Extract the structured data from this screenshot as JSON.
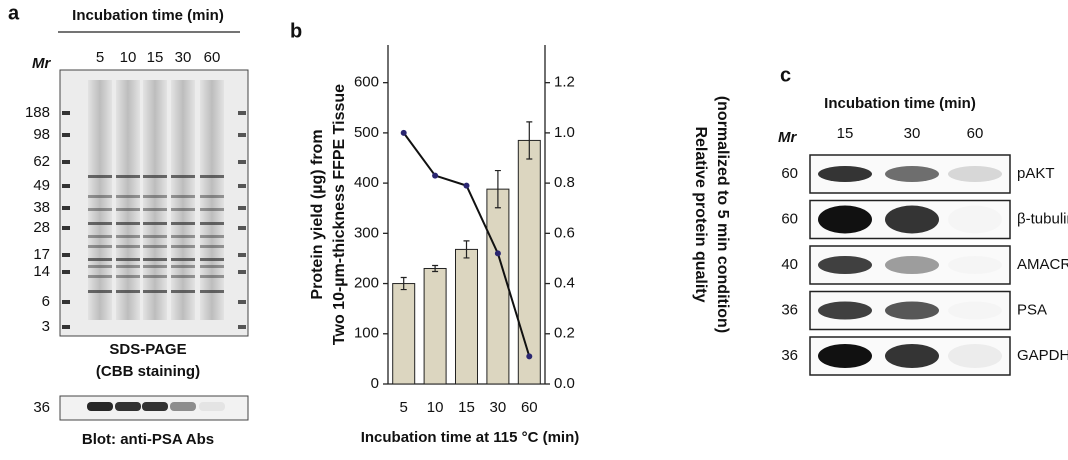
{
  "panel_a": {
    "letter": "a",
    "header": "Incubation time (min)",
    "lanes": [
      "5",
      "10",
      "15",
      "30",
      "60"
    ],
    "mr_label": "Mr",
    "markers": [
      188,
      98,
      62,
      49,
      38,
      28,
      17,
      14,
      6,
      3
    ],
    "caption": [
      "SDS-PAGE",
      "(CBB staining)"
    ],
    "blot_marker": 36,
    "blot_caption": "Blot: anti-PSA Abs"
  },
  "chart_data": {
    "letter": "b",
    "type": "bar-line",
    "xlabel": "Incubation time at 115 °C (min)",
    "ylabel": [
      "Protein yield (µg) from",
      "Two 10-µm-thickness FFPE Tissue"
    ],
    "y2label": [
      "Relative protein quality",
      "(normalized to 5 min condition)"
    ],
    "categories": [
      "5",
      "10",
      "15",
      "30",
      "60"
    ],
    "series": [
      {
        "type": "bar",
        "color": "#dcd6c0",
        "values": [
          200,
          230,
          268,
          388,
          485
        ],
        "errors": [
          12,
          6,
          17,
          37,
          37
        ]
      },
      {
        "type": "line",
        "axis": "y2",
        "color": "#111111",
        "marker_color": "#2a2670",
        "values": [
          1.0,
          0.83,
          0.79,
          0.52,
          0.11
        ]
      }
    ],
    "ylim": [
      0,
      675
    ],
    "yticks": [
      0,
      100,
      200,
      300,
      400,
      500,
      600
    ],
    "y2lim": [
      0,
      1.35
    ],
    "y2ticks": [
      {
        "value": 0,
        "label": "0.0"
      },
      0.2,
      0.4,
      0.6,
      0.8,
      {
        "value": 1,
        "label": "1.0"
      },
      1.2
    ]
  },
  "panel_c": {
    "letter": "c",
    "header": "Incubation time (min)",
    "mr_label": "Mr",
    "lanes": [
      "15",
      "30",
      "60"
    ],
    "rows": [
      {
        "marker": 60,
        "name": "pAKT"
      },
      {
        "marker": 60,
        "name": "β-tubulin"
      },
      {
        "marker": 40,
        "name": "AMACR"
      },
      {
        "marker": 36,
        "name": "PSA"
      },
      {
        "marker": 36,
        "name": "GAPDH"
      }
    ]
  }
}
